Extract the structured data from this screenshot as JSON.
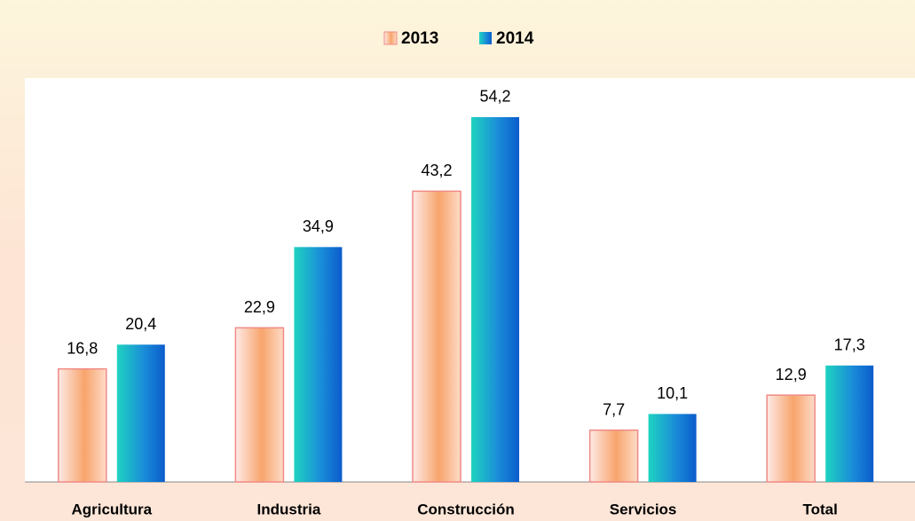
{
  "chart_data": {
    "type": "bar",
    "categories": [
      "Agricultura",
      "Industria",
      "Construcción",
      "Servicios",
      "Total"
    ],
    "series": [
      {
        "name": "2013",
        "color": "#f8a46c",
        "values": [
          16.8,
          22.9,
          43.2,
          7.7,
          12.9
        ],
        "value_labels": [
          "16,8",
          "22,9",
          "43,2",
          "7,7",
          "12,9"
        ]
      },
      {
        "name": "2014",
        "color": "#1a8ed8",
        "values": [
          20.4,
          34.9,
          54.2,
          10.1,
          17.3
        ],
        "value_labels": [
          "20,4",
          "34,9",
          "54,2",
          "10,1",
          "17,3"
        ]
      }
    ],
    "ylim": [
      0,
      60
    ],
    "legend": "top"
  }
}
